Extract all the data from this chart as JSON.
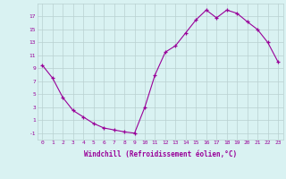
{
  "hours": [
    0,
    1,
    2,
    3,
    4,
    5,
    6,
    7,
    8,
    9,
    10,
    11,
    12,
    13,
    14,
    15,
    16,
    17,
    18,
    19,
    20,
    21,
    22,
    23
  ],
  "y_values": [
    9.5,
    7.5,
    4.5,
    2.5,
    1.5,
    0.5,
    -0.2,
    -0.5,
    -0.8,
    -1.0,
    3.0,
    8.0,
    11.5,
    12.5,
    14.5,
    16.5,
    18.0,
    16.8,
    18.0,
    17.5,
    16.2,
    15.0,
    13.0,
    10.0
  ],
  "line_color": "#990099",
  "marker_color": "#990099",
  "bg_color": "#d9f2f2",
  "grid_color": "#b8d0d0",
  "axis_color": "#990099",
  "tick_color": "#990099",
  "xlabel": "Windchill (Refroidissement éolien,°C)",
  "yticks": [
    -1,
    1,
    3,
    5,
    7,
    9,
    11,
    13,
    15,
    17
  ],
  "xticks": [
    0,
    1,
    2,
    3,
    4,
    5,
    6,
    7,
    8,
    9,
    10,
    11,
    12,
    13,
    14,
    15,
    16,
    17,
    18,
    19,
    20,
    21,
    22,
    23
  ],
  "ylim": [
    -2.0,
    19.0
  ],
  "xlim": [
    -0.5,
    23.5
  ]
}
